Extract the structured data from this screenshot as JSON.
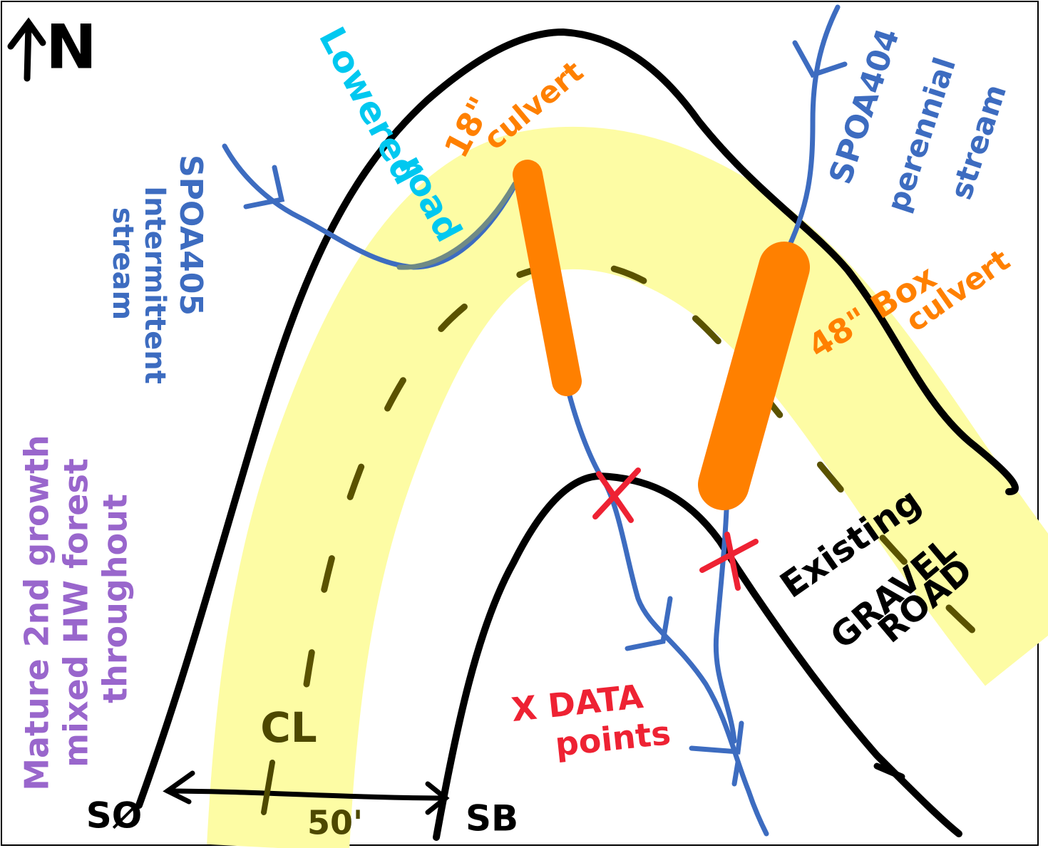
{
  "north": "N",
  "labels": {
    "lowered_road": [
      "Lowered",
      "road"
    ],
    "culvert_18": [
      "18\"",
      "culvert"
    ],
    "intermittent": [
      "SPOA405",
      "Intermittent",
      "stream"
    ],
    "perennial": [
      "SPOA404",
      "perennial",
      "stream"
    ],
    "box_culvert": [
      "48\" Box",
      "culvert"
    ],
    "gravel_road": [
      "Existing",
      "GRAVEL",
      "ROAD"
    ],
    "data_points": [
      "X DATA",
      "points"
    ],
    "forest": [
      "Mature 2nd growth",
      "mixed HW forest",
      "throughout"
    ]
  },
  "centerline": "CL",
  "scale": {
    "distance": "50'",
    "left": "SØ",
    "right": "SB"
  }
}
